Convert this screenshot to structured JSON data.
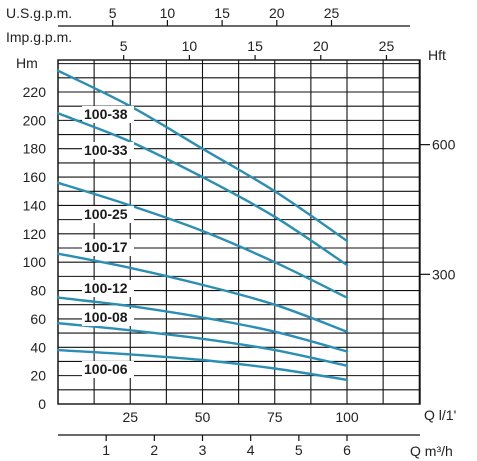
{
  "chart_data": {
    "type": "line",
    "series_color": "#2a8fb3",
    "axes": {
      "usgpm": {
        "label": "U.S.g.p.m.",
        "ticks": [
          5,
          10,
          15,
          20,
          25
        ],
        "range": [
          0,
          27.5
        ]
      },
      "impgpm": {
        "label": "Imp.g.p.m.",
        "ticks": [
          5,
          10,
          15,
          20,
          25
        ],
        "range": [
          0,
          22.9
        ]
      },
      "head_m": {
        "label": "Hm",
        "ticks": [
          0,
          20,
          40,
          60,
          80,
          100,
          120,
          140,
          160,
          180,
          200,
          220
        ],
        "range": [
          0,
          240
        ]
      },
      "head_ft": {
        "label": "Hft",
        "ticks": [
          300,
          600
        ]
      },
      "flow_lmin": {
        "label": "Q l/1'",
        "ticks": [
          25,
          50,
          75,
          100
        ],
        "range": [
          0,
          125
        ]
      },
      "flow_m3h": {
        "label": "Q m³/h",
        "ticks": [
          1,
          2,
          3,
          4,
          5,
          6
        ],
        "range": [
          0,
          7.5
        ]
      }
    },
    "grid": true,
    "x_unit": "l/min",
    "series": [
      {
        "name": "100-38",
        "x": [
          0,
          25,
          50,
          75,
          100
        ],
        "y": [
          235,
          210,
          180,
          150,
          115
        ]
      },
      {
        "name": "100-33",
        "x": [
          0,
          25,
          50,
          75,
          100
        ],
        "y": [
          205,
          185,
          160,
          132,
          98
        ]
      },
      {
        "name": "100-25",
        "x": [
          0,
          25,
          50,
          75,
          100
        ],
        "y": [
          156,
          140,
          122,
          100,
          75
        ]
      },
      {
        "name": "100-17",
        "x": [
          0,
          25,
          50,
          75,
          100
        ],
        "y": [
          106,
          96,
          84,
          70,
          51
        ]
      },
      {
        "name": "100-12",
        "x": [
          0,
          25,
          50,
          75,
          100
        ],
        "y": [
          75,
          69,
          61,
          51,
          37
        ]
      },
      {
        "name": "100-08",
        "x": [
          0,
          25,
          50,
          75,
          100
        ],
        "y": [
          57,
          52,
          46,
          38,
          27
        ]
      },
      {
        "name": "100-06",
        "x": [
          0,
          25,
          50,
          75,
          100
        ],
        "y": [
          38,
          35,
          31,
          25,
          17
        ]
      }
    ]
  }
}
